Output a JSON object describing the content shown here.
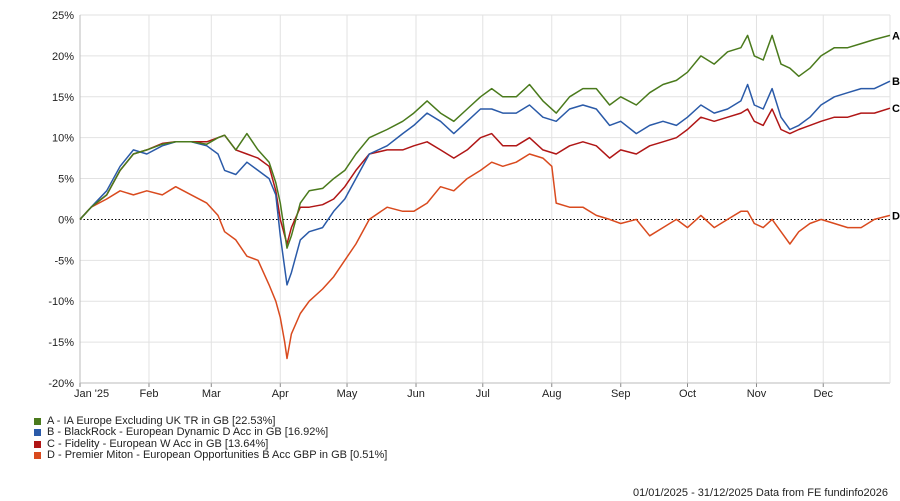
{
  "chart_data": {
    "type": "line",
    "ylim": [
      -20,
      25
    ],
    "y_ticks": [
      "25%",
      "20%",
      "15%",
      "10%",
      "5%",
      "0%",
      "-5%",
      "-10%",
      "-15%",
      "-20%"
    ],
    "x_ticks": [
      {
        "label": "Jan '25",
        "day": 0
      },
      {
        "label": "Feb",
        "day": 31
      },
      {
        "label": "Mar",
        "day": 59
      },
      {
        "label": "Apr",
        "day": 90
      },
      {
        "label": "May",
        "day": 120
      },
      {
        "label": "Jun",
        "day": 151
      },
      {
        "label": "Jul",
        "day": 181
      },
      {
        "label": "Aug",
        "day": 212
      },
      {
        "label": "Sep",
        "day": 243
      },
      {
        "label": "Oct",
        "day": 273
      },
      {
        "label": "Nov",
        "day": 304
      },
      {
        "label": "Dec",
        "day": 334
      }
    ],
    "x_range": [
      0,
      364
    ],
    "zero_line": "dotted",
    "grid": true,
    "series": [
      {
        "tag": "A",
        "name": "A - IA Europe Excluding UK TR in GB [22.53%]",
        "color": "#4a7a1c",
        "points": [
          [
            0,
            0
          ],
          [
            5,
            1.5
          ],
          [
            12,
            3
          ],
          [
            18,
            6
          ],
          [
            24,
            8
          ],
          [
            30,
            8.5
          ],
          [
            37,
            9.2
          ],
          [
            43,
            9.5
          ],
          [
            50,
            9.5
          ],
          [
            57,
            9.2
          ],
          [
            62,
            10
          ],
          [
            65,
            10.3
          ],
          [
            70,
            8.5
          ],
          [
            75,
            10.5
          ],
          [
            80,
            8.5
          ],
          [
            85,
            7
          ],
          [
            88,
            4.5
          ],
          [
            90,
            2
          ],
          [
            93,
            -3.5
          ],
          [
            95,
            -2
          ],
          [
            99,
            2
          ],
          [
            103,
            3.5
          ],
          [
            109,
            3.8
          ],
          [
            114,
            5
          ],
          [
            119,
            6
          ],
          [
            124,
            8
          ],
          [
            130,
            10
          ],
          [
            138,
            11
          ],
          [
            145,
            12
          ],
          [
            150,
            13
          ],
          [
            156,
            14.5
          ],
          [
            162,
            13
          ],
          [
            168,
            12
          ],
          [
            174,
            13.5
          ],
          [
            180,
            15
          ],
          [
            185,
            16
          ],
          [
            190,
            15
          ],
          [
            196,
            15
          ],
          [
            202,
            16.5
          ],
          [
            208,
            14.5
          ],
          [
            214,
            13
          ],
          [
            220,
            15
          ],
          [
            226,
            16
          ],
          [
            232,
            16
          ],
          [
            238,
            14
          ],
          [
            243,
            15
          ],
          [
            250,
            14
          ],
          [
            256,
            15.5
          ],
          [
            262,
            16.5
          ],
          [
            268,
            17
          ],
          [
            273,
            18
          ],
          [
            279,
            20
          ],
          [
            285,
            19
          ],
          [
            291,
            20.5
          ],
          [
            297,
            21
          ],
          [
            300,
            22.5
          ],
          [
            303,
            20
          ],
          [
            307,
            19.5
          ],
          [
            311,
            22.5
          ],
          [
            315,
            19
          ],
          [
            319,
            18.5
          ],
          [
            323,
            17.5
          ],
          [
            328,
            18.5
          ],
          [
            333,
            20
          ],
          [
            339,
            21
          ],
          [
            345,
            21
          ],
          [
            351,
            21.5
          ],
          [
            357,
            22
          ],
          [
            364,
            22.5
          ]
        ]
      },
      {
        "tag": "B",
        "name": "B - BlackRock - European Dynamic D Acc in GB [16.92%]",
        "color": "#2a5aa8",
        "points": [
          [
            0,
            0
          ],
          [
            5,
            1.5
          ],
          [
            12,
            3.5
          ],
          [
            18,
            6.5
          ],
          [
            24,
            8.5
          ],
          [
            30,
            8
          ],
          [
            37,
            9
          ],
          [
            43,
            9.5
          ],
          [
            50,
            9.5
          ],
          [
            57,
            9
          ],
          [
            62,
            8
          ],
          [
            65,
            6
          ],
          [
            70,
            5.5
          ],
          [
            75,
            7
          ],
          [
            80,
            6
          ],
          [
            85,
            5
          ],
          [
            88,
            3
          ],
          [
            90,
            -2
          ],
          [
            93,
            -8
          ],
          [
            95,
            -6.5
          ],
          [
            99,
            -2.5
          ],
          [
            103,
            -1.5
          ],
          [
            109,
            -1
          ],
          [
            114,
            1
          ],
          [
            119,
            2.5
          ],
          [
            124,
            5
          ],
          [
            130,
            8
          ],
          [
            138,
            9
          ],
          [
            145,
            10.5
          ],
          [
            150,
            11.5
          ],
          [
            156,
            13
          ],
          [
            162,
            12
          ],
          [
            168,
            10.5
          ],
          [
            174,
            12
          ],
          [
            180,
            13.5
          ],
          [
            185,
            13.5
          ],
          [
            190,
            13
          ],
          [
            196,
            13
          ],
          [
            202,
            14
          ],
          [
            208,
            12.5
          ],
          [
            214,
            12
          ],
          [
            220,
            13.5
          ],
          [
            226,
            14
          ],
          [
            232,
            13.5
          ],
          [
            238,
            11.5
          ],
          [
            243,
            12
          ],
          [
            250,
            10.5
          ],
          [
            256,
            11.5
          ],
          [
            262,
            12
          ],
          [
            268,
            11.5
          ],
          [
            273,
            12.5
          ],
          [
            279,
            14
          ],
          [
            285,
            13
          ],
          [
            291,
            13.5
          ],
          [
            297,
            14.5
          ],
          [
            300,
            16.5
          ],
          [
            303,
            14
          ],
          [
            307,
            13.5
          ],
          [
            311,
            16
          ],
          [
            315,
            12.5
          ],
          [
            319,
            11
          ],
          [
            323,
            11.5
          ],
          [
            328,
            12.5
          ],
          [
            333,
            14
          ],
          [
            339,
            15
          ],
          [
            345,
            15.5
          ],
          [
            351,
            16
          ],
          [
            357,
            16
          ],
          [
            364,
            16.9
          ]
        ]
      },
      {
        "tag": "C",
        "name": "C - Fidelity - European W Acc in GB [13.64%]",
        "color": "#b01616",
        "points": [
          [
            0,
            0
          ],
          [
            5,
            1.5
          ],
          [
            12,
            3
          ],
          [
            18,
            6
          ],
          [
            24,
            8
          ],
          [
            30,
            8.5
          ],
          [
            37,
            9.3
          ],
          [
            43,
            9.5
          ],
          [
            50,
            9.5
          ],
          [
            57,
            9.5
          ],
          [
            62,
            10
          ],
          [
            65,
            10.3
          ],
          [
            70,
            8.5
          ],
          [
            75,
            8
          ],
          [
            80,
            7.5
          ],
          [
            85,
            6.5
          ],
          [
            88,
            3.5
          ],
          [
            90,
            0
          ],
          [
            93,
            -3
          ],
          [
            95,
            -1
          ],
          [
            99,
            1.5
          ],
          [
            103,
            1.5
          ],
          [
            109,
            1.8
          ],
          [
            114,
            2.5
          ],
          [
            119,
            4
          ],
          [
            124,
            6
          ],
          [
            130,
            8
          ],
          [
            138,
            8.5
          ],
          [
            145,
            8.5
          ],
          [
            150,
            9
          ],
          [
            156,
            9.5
          ],
          [
            162,
            8.5
          ],
          [
            168,
            7.5
          ],
          [
            174,
            8.5
          ],
          [
            180,
            10
          ],
          [
            185,
            10.5
          ],
          [
            190,
            9
          ],
          [
            196,
            9
          ],
          [
            202,
            10
          ],
          [
            208,
            8.5
          ],
          [
            214,
            8
          ],
          [
            220,
            9
          ],
          [
            226,
            9.5
          ],
          [
            232,
            9
          ],
          [
            238,
            7.5
          ],
          [
            243,
            8.5
          ],
          [
            250,
            8
          ],
          [
            256,
            9
          ],
          [
            262,
            9.5
          ],
          [
            268,
            10
          ],
          [
            273,
            11
          ],
          [
            279,
            12.5
          ],
          [
            285,
            12
          ],
          [
            291,
            12.5
          ],
          [
            297,
            13
          ],
          [
            300,
            13.5
          ],
          [
            303,
            12
          ],
          [
            307,
            11.5
          ],
          [
            311,
            13.5
          ],
          [
            315,
            11
          ],
          [
            319,
            10.5
          ],
          [
            323,
            11
          ],
          [
            328,
            11.5
          ],
          [
            333,
            12
          ],
          [
            339,
            12.5
          ],
          [
            345,
            12.5
          ],
          [
            351,
            13
          ],
          [
            357,
            13
          ],
          [
            364,
            13.6
          ]
        ]
      },
      {
        "tag": "D",
        "name": "D - Premier Miton - European Opportunities B Acc GBP in GB [0.51%]",
        "color": "#d94a1e",
        "points": [
          [
            0,
            0
          ],
          [
            5,
            1.5
          ],
          [
            12,
            2.5
          ],
          [
            18,
            3.5
          ],
          [
            24,
            3
          ],
          [
            30,
            3.5
          ],
          [
            37,
            3
          ],
          [
            43,
            4
          ],
          [
            50,
            3
          ],
          [
            57,
            2
          ],
          [
            62,
            0.5
          ],
          [
            65,
            -1.5
          ],
          [
            70,
            -2.5
          ],
          [
            75,
            -4.5
          ],
          [
            80,
            -5
          ],
          [
            85,
            -8
          ],
          [
            88,
            -10
          ],
          [
            90,
            -12
          ],
          [
            92,
            -15
          ],
          [
            93,
            -17
          ],
          [
            95,
            -14
          ],
          [
            99,
            -11.5
          ],
          [
            103,
            -10
          ],
          [
            109,
            -8.5
          ],
          [
            114,
            -7
          ],
          [
            119,
            -5
          ],
          [
            124,
            -3
          ],
          [
            130,
            0
          ],
          [
            138,
            1.5
          ],
          [
            145,
            1
          ],
          [
            150,
            1
          ],
          [
            156,
            2
          ],
          [
            162,
            4
          ],
          [
            168,
            3.5
          ],
          [
            174,
            5
          ],
          [
            180,
            6
          ],
          [
            185,
            7
          ],
          [
            190,
            6.5
          ],
          [
            196,
            7
          ],
          [
            202,
            8
          ],
          [
            208,
            7.5
          ],
          [
            212,
            6.5
          ],
          [
            214,
            2
          ],
          [
            220,
            1.5
          ],
          [
            226,
            1.5
          ],
          [
            232,
            0.5
          ],
          [
            238,
            0
          ],
          [
            243,
            -0.5
          ],
          [
            250,
            0
          ],
          [
            256,
            -2
          ],
          [
            262,
            -1
          ],
          [
            268,
            0
          ],
          [
            273,
            -1
          ],
          [
            279,
            0.5
          ],
          [
            285,
            -1
          ],
          [
            291,
            0
          ],
          [
            297,
            1
          ],
          [
            300,
            1
          ],
          [
            303,
            -0.5
          ],
          [
            307,
            -1
          ],
          [
            311,
            0
          ],
          [
            315,
            -1.5
          ],
          [
            319,
            -3
          ],
          [
            323,
            -1.5
          ],
          [
            328,
            -0.5
          ],
          [
            333,
            0
          ],
          [
            339,
            -0.5
          ],
          [
            345,
            -1
          ],
          [
            351,
            -1
          ],
          [
            357,
            0
          ],
          [
            364,
            0.5
          ]
        ]
      }
    ],
    "date_range": "01/01/2025 - 31/12/2025",
    "source": "Data from FE fundinfo2026"
  }
}
